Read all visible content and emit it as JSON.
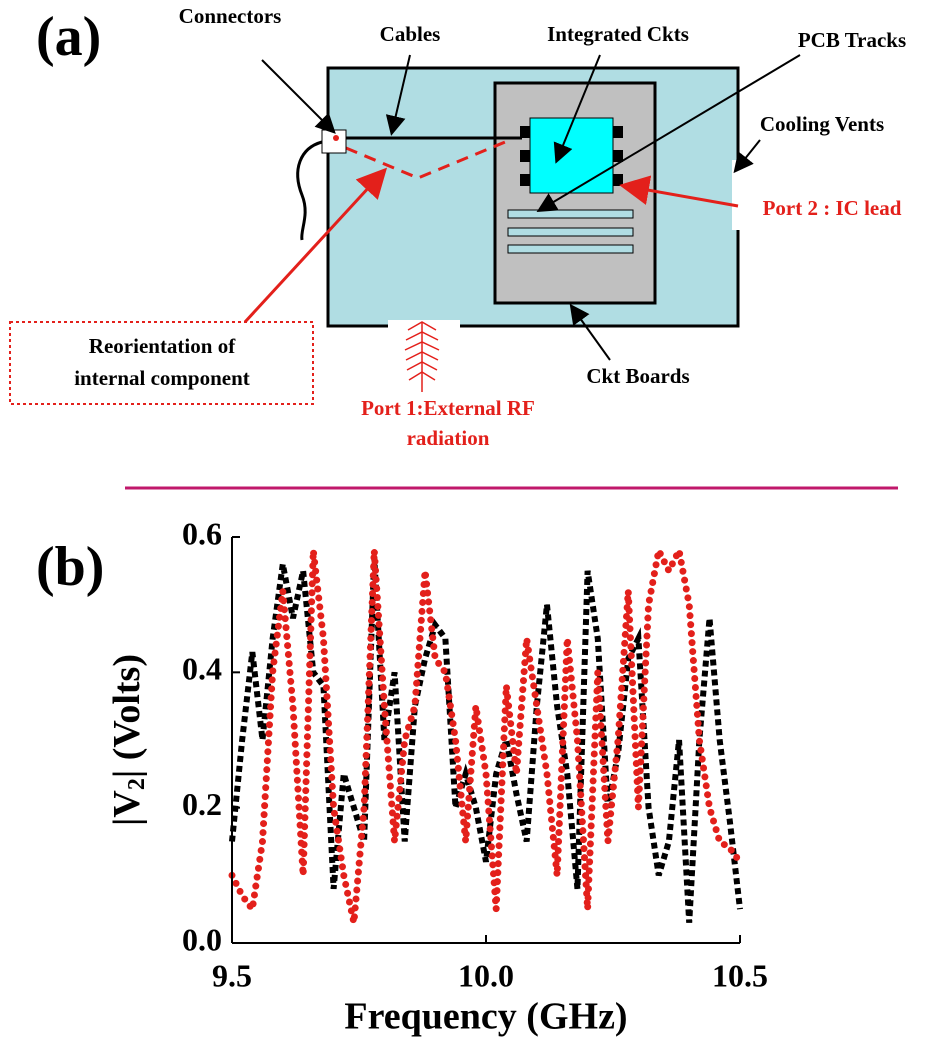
{
  "diagram": {
    "panel_label": "(a)",
    "labels": {
      "connectors": "Connectors",
      "cables": "Cables",
      "integrated": "Integrated Ckts",
      "pcb": "PCB Tracks",
      "vents": "Cooling Vents",
      "port2": "Port 2 : IC lead",
      "reorient": [
        "Reorientation of",
        "internal component"
      ],
      "boards": "Ckt Boards",
      "port1": [
        "Port 1:External RF",
        "radiation"
      ]
    }
  },
  "chart_data": {
    "type": "line",
    "panel_label": "(b)",
    "x_label": "Frequency (GHz)",
    "y_label": {
      "main": "|V",
      "subscript": "2",
      "rest": "| (Volts)"
    },
    "xlim": [
      9.5,
      10.5
    ],
    "ylim": [
      0,
      0.6
    ],
    "xticks": [
      9.5,
      {
        "value": 10,
        "label": "10.0"
      },
      10.5
    ],
    "yticks": [
      {
        "value": 0,
        "label": "0.0"
      },
      0.2,
      0.4,
      0.6
    ],
    "x": [
      9.5,
      9.52,
      9.54,
      9.56,
      9.58,
      9.6,
      9.62,
      9.64,
      9.66,
      9.68,
      9.7,
      9.72,
      9.74,
      9.76,
      9.78,
      9.8,
      9.82,
      9.84,
      9.86,
      9.88,
      9.9,
      9.92,
      9.94,
      9.96,
      9.98,
      10.0,
      10.02,
      10.04,
      10.06,
      10.08,
      10.1,
      10.12,
      10.14,
      10.16,
      10.18,
      10.2,
      10.22,
      10.24,
      10.26,
      10.28,
      10.3,
      10.32,
      10.34,
      10.36,
      10.38,
      10.4,
      10.42,
      10.44,
      10.46,
      10.48,
      10.5
    ],
    "series": [
      {
        "color": "#000000",
        "values": [
          0.15,
          0.3,
          0.43,
          0.3,
          0.45,
          0.56,
          0.48,
          0.55,
          0.4,
          0.38,
          0.08,
          0.25,
          0.2,
          0.15,
          0.57,
          0.3,
          0.4,
          0.15,
          0.35,
          0.42,
          0.47,
          0.45,
          0.2,
          0.25,
          0.2,
          0.12,
          0.25,
          0.3,
          0.22,
          0.15,
          0.35,
          0.5,
          0.35,
          0.25,
          0.08,
          0.55,
          0.45,
          0.2,
          0.28,
          0.42,
          0.45,
          0.2,
          0.1,
          0.15,
          0.3,
          0.03,
          0.3,
          0.48,
          0.3,
          0.18,
          0.05
        ]
      },
      {
        "color": "#e3201b",
        "values": [
          0.1,
          0.07,
          0.05,
          0.15,
          0.4,
          0.52,
          0.35,
          0.1,
          0.58,
          0.45,
          0.2,
          0.1,
          0.03,
          0.2,
          0.58,
          0.35,
          0.15,
          0.3,
          0.35,
          0.55,
          0.42,
          0.4,
          0.3,
          0.15,
          0.35,
          0.25,
          0.05,
          0.38,
          0.25,
          0.45,
          0.35,
          0.25,
          0.1,
          0.45,
          0.3,
          0.05,
          0.4,
          0.15,
          0.3,
          0.52,
          0.2,
          0.5,
          0.58,
          0.55,
          0.58,
          0.5,
          0.3,
          0.2,
          0.15,
          0.14,
          0.12
        ]
      }
    ]
  }
}
